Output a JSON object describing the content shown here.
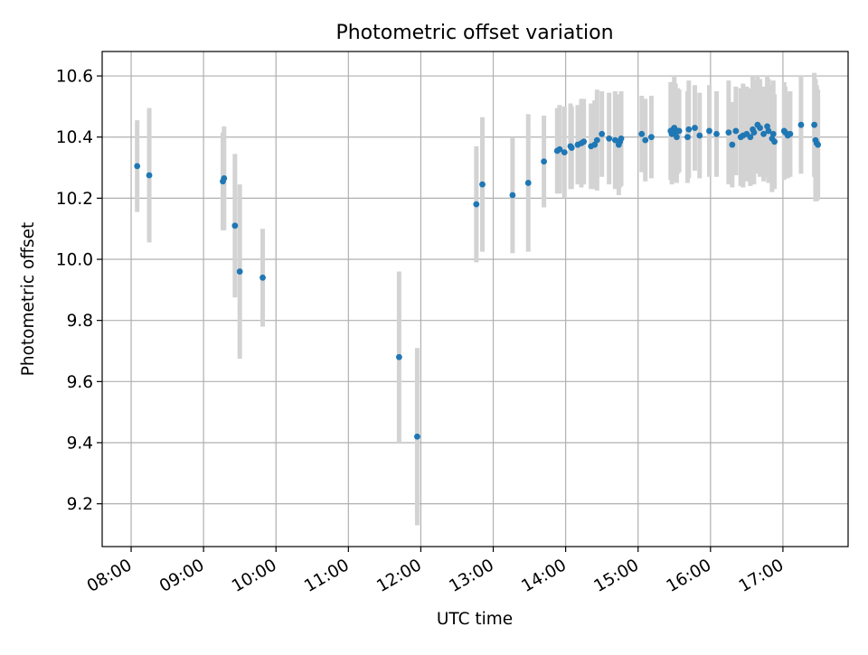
{
  "chart_data": {
    "type": "scatter",
    "title": "Photometric offset variation",
    "xlabel": "UTC time",
    "ylabel": "Photometric offset",
    "x_unit": "hours UTC",
    "xlim": [
      7.6,
      17.9
    ],
    "ylim": [
      9.06,
      10.68
    ],
    "xticks": [
      8,
      9,
      10,
      11,
      12,
      13,
      14,
      15,
      16,
      17
    ],
    "xtick_labels": [
      "08:00",
      "09:00",
      "10:00",
      "11:00",
      "12:00",
      "13:00",
      "14:00",
      "15:00",
      "16:00",
      "17:00"
    ],
    "yticks": [
      9.2,
      9.4,
      9.6,
      9.8,
      10.0,
      10.2,
      10.4,
      10.6
    ],
    "ytick_labels": [
      "9.2",
      "9.4",
      "9.6",
      "9.8",
      "10.0",
      "10.2",
      "10.4",
      "10.6"
    ],
    "grid": true,
    "colors": {
      "point": "#1f77b4",
      "errorbar": "#d3d3d3",
      "grid": "#b0b0b0",
      "axes": "#000000"
    },
    "series": [
      {
        "x": [
          "08:05",
          "08:15",
          "09:16",
          "09:17",
          "09:26",
          "09:30",
          "09:49",
          "11:42",
          "11:57",
          "12:46",
          "12:51",
          "13:16",
          "13:29",
          "13:42",
          "13:53",
          "13:55",
          "13:59",
          "14:04",
          "14:05",
          "14:10",
          "14:13",
          "14:15",
          "14:21",
          "14:24",
          "14:26",
          "14:30",
          "14:36",
          "14:41",
          "14:44",
          "14:45",
          "14:46",
          "15:03",
          "15:06",
          "15:11",
          "15:27",
          "15:28",
          "15:29",
          "15:30",
          "15:31",
          "15:32",
          "15:33",
          "15:34",
          "15:41",
          "15:42",
          "15:47",
          "15:51",
          "15:59",
          "16:05",
          "16:15",
          "16:18",
          "16:21",
          "16:25",
          "16:27",
          "16:30",
          "16:33",
          "16:35",
          "16:36",
          "16:39",
          "16:41",
          "16:44",
          "16:47",
          "16:48",
          "16:51",
          "16:52",
          "16:53",
          "17:01",
          "17:02",
          "17:04",
          "17:06",
          "17:15",
          "17:26",
          "17:27",
          "17:28",
          "17:29"
        ],
        "y": [
          10.305,
          10.275,
          10.255,
          10.265,
          10.11,
          9.96,
          9.94,
          9.68,
          9.42,
          10.18,
          10.245,
          10.21,
          10.25,
          10.32,
          10.355,
          10.36,
          10.35,
          10.37,
          10.365,
          10.375,
          10.38,
          10.385,
          10.37,
          10.375,
          10.39,
          10.41,
          10.395,
          10.39,
          10.375,
          10.385,
          10.395,
          10.41,
          10.39,
          10.4,
          10.42,
          10.41,
          10.425,
          10.43,
          10.415,
          10.4,
          10.42,
          10.42,
          10.4,
          10.425,
          10.43,
          10.405,
          10.42,
          10.41,
          10.415,
          10.375,
          10.42,
          10.4,
          10.405,
          10.41,
          10.4,
          10.425,
          10.415,
          10.44,
          10.43,
          10.41,
          10.435,
          10.42,
          10.395,
          10.41,
          10.385,
          10.42,
          10.415,
          10.405,
          10.41,
          10.44,
          10.44,
          10.39,
          10.38,
          10.375
        ],
        "yerr": [
          0.15,
          0.22,
          0.16,
          0.17,
          0.235,
          0.285,
          0.16,
          0.28,
          0.29,
          0.19,
          0.22,
          0.19,
          0.225,
          0.15,
          0.14,
          0.145,
          0.15,
          0.14,
          0.135,
          0.13,
          0.145,
          0.14,
          0.14,
          0.145,
          0.165,
          0.14,
          0.15,
          0.16,
          0.165,
          0.15,
          0.155,
          0.125,
          0.135,
          0.135,
          0.16,
          0.165,
          0.155,
          0.17,
          0.16,
          0.15,
          0.14,
          0.135,
          0.15,
          0.16,
          0.14,
          0.14,
          0.15,
          0.14,
          0.17,
          0.14,
          0.145,
          0.16,
          0.17,
          0.155,
          0.16,
          0.175,
          0.17,
          0.16,
          0.16,
          0.155,
          0.165,
          0.17,
          0.175,
          0.175,
          0.155,
          0.16,
          0.15,
          0.14,
          0.14,
          0.16,
          0.17,
          0.2,
          0.19,
          0.18
        ]
      }
    ]
  }
}
